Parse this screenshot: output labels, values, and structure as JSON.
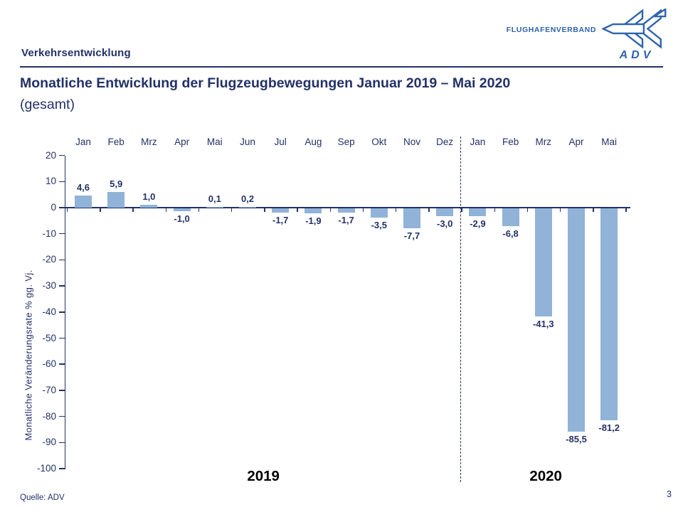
{
  "header": {
    "section": "Verkehrsentwicklung",
    "logo": {
      "brand": "FLUGHAFENVERBAND",
      "acronym": "ADV"
    }
  },
  "title": {
    "line1": "Monatliche Entwicklung der Flugzeugbewegungen Januar 2019 – Mai 2020",
    "line2": "(gesamt)"
  },
  "chart_data": {
    "type": "bar",
    "title": "Monatliche Entwicklung der Flugzeugbewegungen Januar 2019 – Mai 2020 (gesamt)",
    "categories": [
      "Jan",
      "Feb",
      "Mrz",
      "Apr",
      "Mai",
      "Jun",
      "Jul",
      "Aug",
      "Sep",
      "Okt",
      "Nov",
      "Dez",
      "Jan",
      "Feb",
      "Mrz",
      "Apr",
      "Mai"
    ],
    "values": [
      4.6,
      5.9,
      1.0,
      -1.0,
      0.1,
      0.2,
      -1.7,
      -1.9,
      -1.7,
      -3.5,
      -7.7,
      -3.0,
      -2.9,
      -6.8,
      -41.3,
      -85.5,
      -81.2
    ],
    "value_labels": [
      "4,6",
      "5,9",
      "1,0",
      "-1,0",
      "0,1",
      "0,2",
      "-1,7",
      "-1,9",
      "-1,7",
      "-3,5",
      "-7,7",
      "-3,0",
      "-2,9",
      "-6,8",
      "-41,3",
      "-85,5",
      "-81,2"
    ],
    "xlabel": "",
    "ylabel": "Monatliche Veränderungsrate % gg. Vj.",
    "ylim": [
      -100,
      20
    ],
    "yticks": [
      20,
      10,
      0,
      -10,
      -20,
      -30,
      -40,
      -50,
      -60,
      -70,
      -80,
      -90,
      -100
    ],
    "grid": false,
    "legend": null,
    "year_groups": [
      {
        "label": "2019",
        "months": 12
      },
      {
        "label": "2020",
        "months": 5
      }
    ],
    "separator_after_index": 11
  },
  "footer": {
    "source": "Quelle: ADV",
    "page_number": "3"
  },
  "colors": {
    "navy": "#233168",
    "bar-fill": "#90B3D7",
    "logo-blue": "#2E63AC",
    "year-text": "#000000"
  }
}
